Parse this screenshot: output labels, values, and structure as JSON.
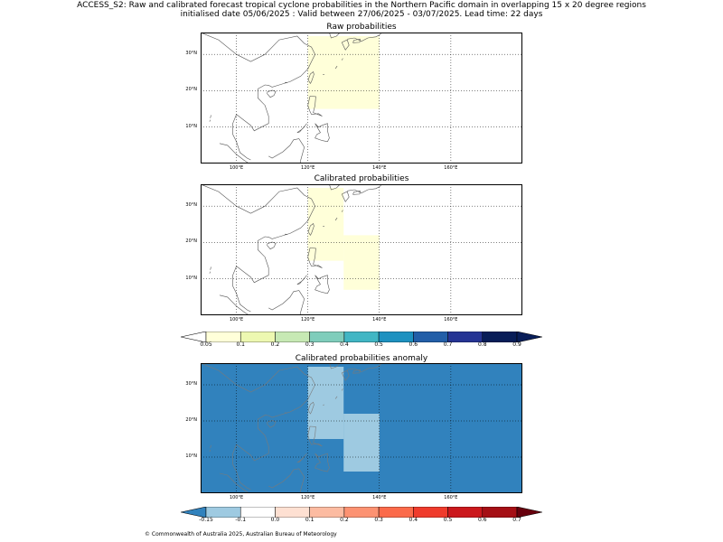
{
  "header": {
    "title_line1": "ACCESS_S2: Raw and calibrated forecast tropical cyclone probabilities in the Northern Pacific domain in overlapping 15 x 20 degree regions",
    "title_line2": "initialised date 05/06/2025 :  Valid between 27/06/2025 - 03/07/2025. Lead time: 22 days"
  },
  "panels": [
    {
      "title": "Raw probabilities",
      "background": "#ffffff",
      "cells": [
        {
          "lon": [
            120,
            140
          ],
          "lat": [
            15,
            35
          ],
          "color": "#ffffd9"
        }
      ]
    },
    {
      "title": "Calibrated probabilities",
      "background": "#ffffff",
      "cells": [
        {
          "lon": [
            120,
            130
          ],
          "lat": [
            15,
            35
          ],
          "color": "#ffffd9"
        },
        {
          "lon": [
            130,
            140
          ],
          "lat": [
            7,
            22
          ],
          "color": "#ffffd9"
        },
        {
          "lon": [
            120,
            130
          ],
          "lat": [
            15,
            22
          ],
          "color": "#ffffd9"
        }
      ]
    },
    {
      "title": "Calibrated probabilities anomaly",
      "background": "#3182bd",
      "cells": [
        {
          "lon": [
            120,
            130
          ],
          "lat": [
            15,
            35
          ],
          "color": "#9ecae1"
        },
        {
          "lon": [
            130,
            140
          ],
          "lat": [
            6,
            22
          ],
          "color": "#9ecae1"
        },
        {
          "lon": [
            120,
            130
          ],
          "lat": [
            15,
            22
          ],
          "color": "#9ecae1"
        }
      ]
    }
  ],
  "axes": {
    "lon_labels": [
      {
        "value": 100,
        "label": "100°E"
      },
      {
        "value": 120,
        "label": "120°E"
      },
      {
        "value": 140,
        "label": "140°E"
      },
      {
        "value": 160,
        "label": "160°E"
      }
    ],
    "lat_labels": [
      {
        "value": 10,
        "label": "10°N"
      },
      {
        "value": 20,
        "label": "20°N"
      },
      {
        "value": 30,
        "label": "30°N"
      }
    ],
    "lon_range": [
      90,
      180
    ],
    "lat_range": [
      0,
      36
    ]
  },
  "colorbars": [
    {
      "name": "probability",
      "ticks": [
        "0.05",
        "0.1",
        "0.2",
        "0.3",
        "0.4",
        "0.5",
        "0.6",
        "0.7",
        "0.8",
        "0.9"
      ],
      "under_color": "#ffffff",
      "over_color": "#081d58",
      "colors": [
        "#ffffd9",
        "#edf8b1",
        "#c7e9b4",
        "#7fcdbb",
        "#41b6c4",
        "#1d91c0",
        "#225ea8",
        "#253494",
        "#081d58"
      ]
    },
    {
      "name": "anomaly",
      "ticks": [
        "-0.15",
        "-0.1",
        "0.0",
        "0.1",
        "0.2",
        "0.3",
        "0.4",
        "0.5",
        "0.6",
        "0.7"
      ],
      "under_color": "#3182bd",
      "over_color": "#67000d",
      "colors": [
        "#9ecae1",
        "#ffffff",
        "#fee0d2",
        "#fcbba1",
        "#fc9272",
        "#fb6a4a",
        "#ef3b2c",
        "#cb181d",
        "#a50f15"
      ]
    }
  ],
  "footer": {
    "text": "© Commonwealth of Australia 2025, Australian Bureau of Meteorology"
  }
}
